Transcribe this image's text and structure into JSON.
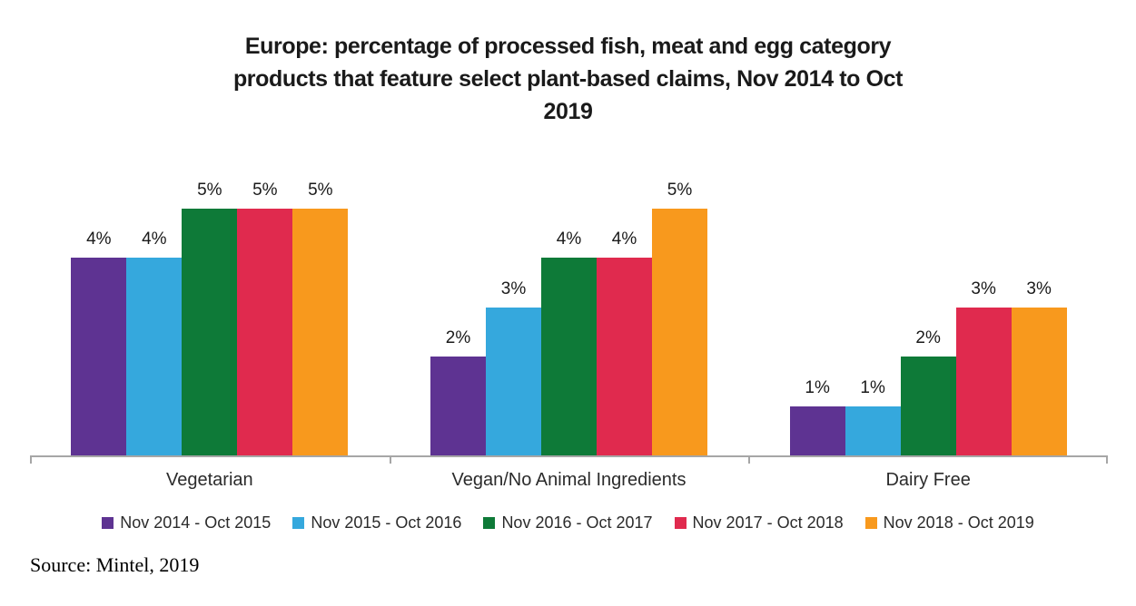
{
  "chart_data": {
    "type": "bar",
    "title": "Europe: percentage of processed fish, meat and egg category products that feature select plant-based claims, Nov 2014 to Oct 2019",
    "title_lines": [
      "Europe: percentage of processed fish, meat and egg category",
      "products that feature select plant-based claims, Nov 2014 to Oct",
      "2019"
    ],
    "categories": [
      "Vegetarian",
      "Vegan/No Animal Ingredients",
      "Dairy Free"
    ],
    "series": [
      {
        "name": "Nov 2014 - Oct 2015",
        "color": "#5e3392",
        "values": [
          4,
          2,
          1
        ]
      },
      {
        "name": "Nov 2015 - Oct 2016",
        "color": "#35a8dd",
        "values": [
          4,
          3,
          1
        ]
      },
      {
        "name": "Nov 2016 - Oct 2017",
        "color": "#0e7a38",
        "values": [
          5,
          4,
          2
        ]
      },
      {
        "name": "Nov 2017 - Oct 2018",
        "color": "#e02a4e",
        "values": [
          5,
          4,
          3
        ]
      },
      {
        "name": "Nov 2018 - Oct 2019",
        "color": "#f8991d",
        "values": [
          5,
          5,
          3
        ]
      }
    ],
    "value_label_format": "{v}%",
    "xlabel": "",
    "ylabel": "",
    "ylim": [
      0,
      5.5
    ],
    "grid": false,
    "y_axis_visible": false,
    "legend_position": "bottom",
    "axis_color": "#a6a6a6"
  },
  "source": {
    "label": "Source: Mintel, 2019"
  }
}
